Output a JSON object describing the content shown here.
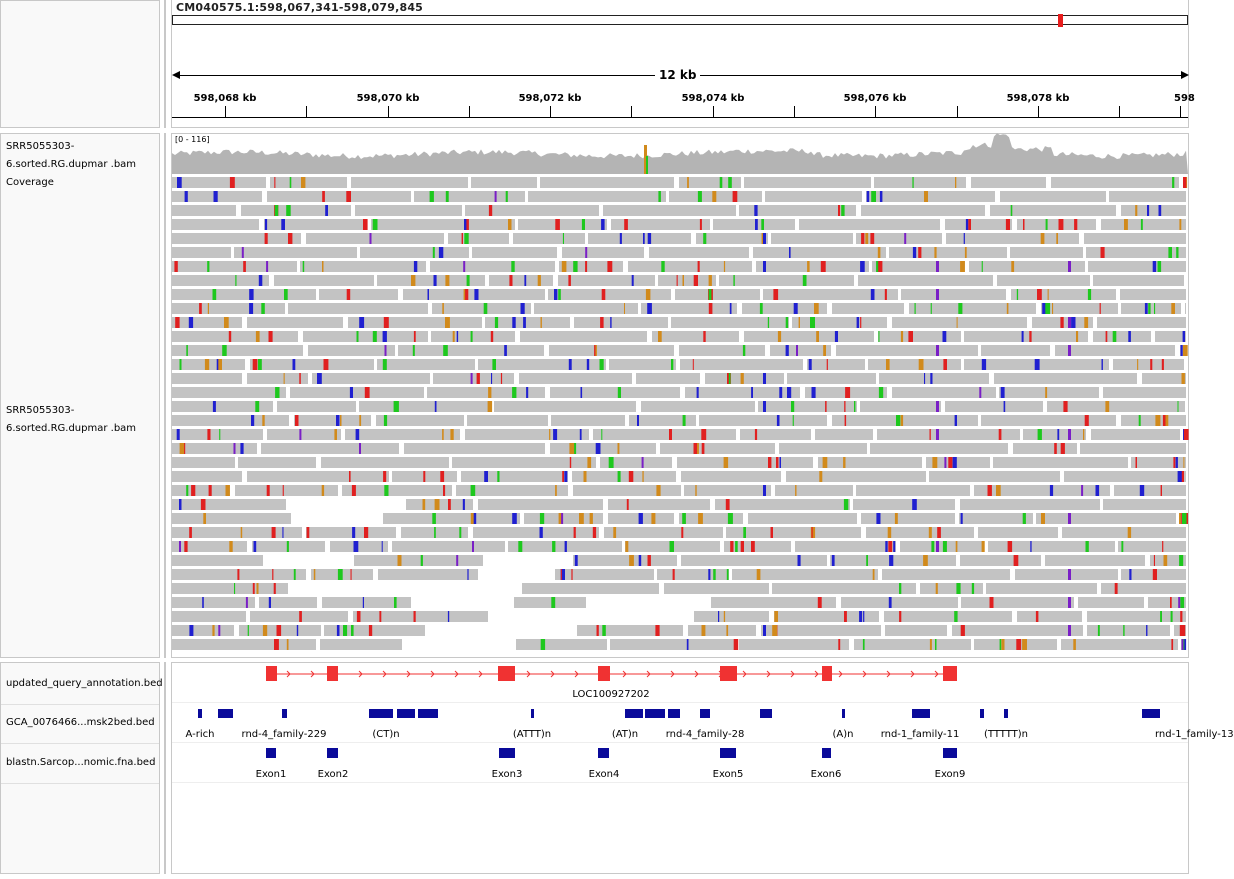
{
  "locus": "CM040575.1:598,067,341-598,079,845",
  "span_label": "12 kb",
  "ruler_ticks": [
    "598,068 kb",
    "598,070 kb",
    "598,072 kb",
    "598,074 kb",
    "598,076 kb",
    "598,078 kb",
    "598"
  ],
  "tracks": {
    "coverage_name": "SRR5055303-6.sorted.RG.dupmar .bam Coverage",
    "coverage_range": "[0 - 116]",
    "alignment_name": "SRR5055303-6.sorted.RG.dupmar .bam",
    "annotation_name": "updated_query_annotation.bed",
    "repeats_name": "GCA_0076466...msk2bed.bed",
    "blast_name": "blastn.Sarcop...nomic.fna.bed"
  },
  "gene": {
    "label": "LOC100927202",
    "color": "#f03232"
  },
  "repeat_labels": [
    "A-rich",
    "rnd-4_family-229",
    "(CT)n",
    "(ATTT)n",
    "(AT)n",
    "rnd-4_family-28",
    "(A)n",
    "rnd-1_family-11",
    "(TTTTT)n",
    "rnd-1_family-13"
  ],
  "exon_labels": [
    "Exon1",
    "Exon2",
    "Exon3",
    "Exon4",
    "Exon5",
    "Exon6",
    "Exon9"
  ],
  "colors": {
    "read_gray": "#c3c3c3",
    "coverage_gray": "#b4b4b4",
    "feature_blue": "#0a0a9a",
    "mismatch_A": "#1ec81e",
    "mismatch_C": "#2020d0",
    "mismatch_G": "#d18a1c",
    "mismatch_T": "#e02020",
    "insertion": "#7a1fc6"
  }
}
